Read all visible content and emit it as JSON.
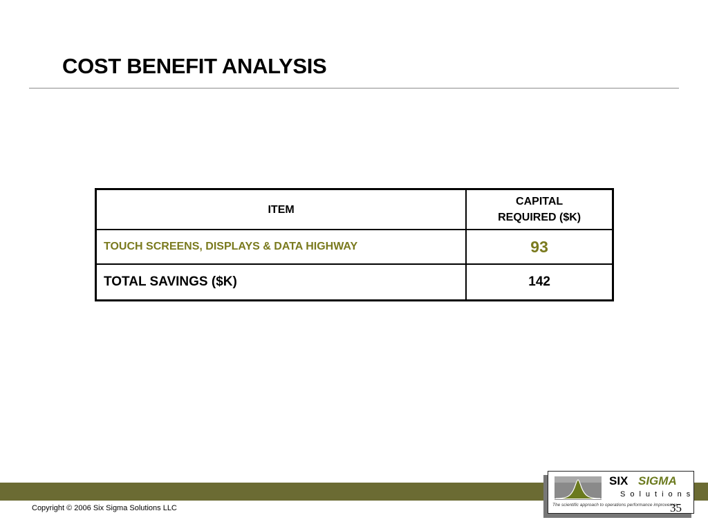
{
  "slide": {
    "title": "COST BENEFIT ANALYSIS",
    "page_number": "35"
  },
  "table": {
    "headers": {
      "item": "ITEM",
      "capital_line1": "CAPITAL",
      "capital_line2": "REQUIRED ($K)"
    },
    "rows": [
      {
        "item": "TOUCH SCREENS, DISPLAYS & DATA HIGHWAY",
        "capital": "93"
      }
    ],
    "total": {
      "label": "TOTAL SAVINGS ($K)",
      "value": "142"
    }
  },
  "footer": {
    "copyright": "Copyright © 2006 Six Sigma Solutions LLC",
    "band_color": "#6b6b33"
  },
  "logo": {
    "name_part1": "SIX",
    "name_part2": "SIGMA",
    "subtitle": "Solutions",
    "tagline": "The scientific approach to operations performance improvement",
    "icon": "bell-curve-icon"
  },
  "colors": {
    "accent_olive": "#7a7a1e",
    "text": "#000000"
  }
}
